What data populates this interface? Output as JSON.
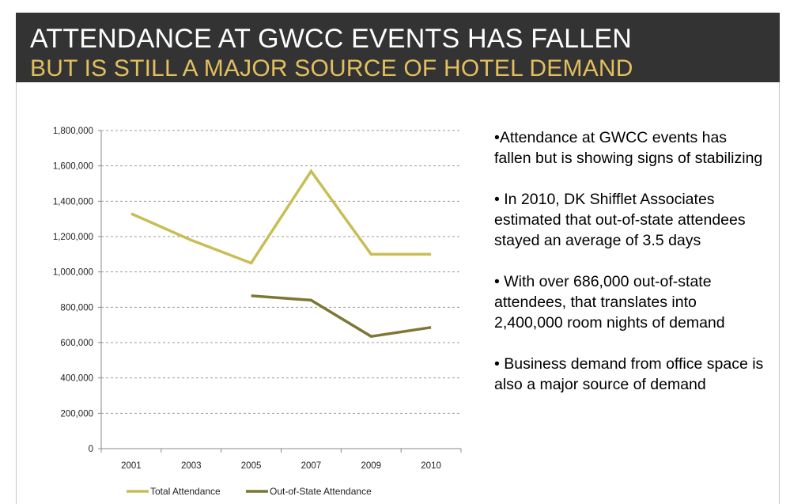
{
  "slide": {
    "title": "ATTENDANCE AT GWCC EVENTS HAS FALLEN",
    "subtitle": "BUT IS STILL A MAJOR SOURCE OF HOTEL DEMAND"
  },
  "colors": {
    "header_bg": "#333333",
    "subtitle": "#E2BF5F",
    "total_attendance": "#C8BE55",
    "out_of_state": "#7D7735",
    "grid": "#9a9a9a"
  },
  "bullets": [
    "•Attendance at GWCC events has fallen but is showing signs of stabilizing",
    "• In 2010, DK Shifflet Associates estimated that out-of-state attendees stayed an average of 3.5 days",
    "• With over 686,000 out-of-state attendees, that translates into 2,400,000 room nights of demand",
    "• Business demand from office space is also a major source of demand"
  ],
  "chart_data": {
    "type": "line",
    "categories": [
      "2001",
      "2003",
      "2005",
      "2007",
      "2009",
      "2010"
    ],
    "series": [
      {
        "name": "Total Attendance",
        "values": [
          1330000,
          1180000,
          1050000,
          1570000,
          1100000,
          1100000
        ]
      },
      {
        "name": "Out-of-State Attendance",
        "values": [
          null,
          null,
          865000,
          840000,
          635000,
          686000
        ]
      }
    ],
    "ylim": [
      0,
      1800000
    ],
    "yticks": [
      0,
      200000,
      400000,
      600000,
      800000,
      1000000,
      1200000,
      1400000,
      1600000,
      1800000
    ],
    "ytick_labels": [
      "0",
      "200,000",
      "400,000",
      "600,000",
      "800,000",
      "1,000,000",
      "1,200,000",
      "1,400,000",
      "1,600,000",
      "1,800,000"
    ],
    "grid": true,
    "legend": "bottom"
  }
}
